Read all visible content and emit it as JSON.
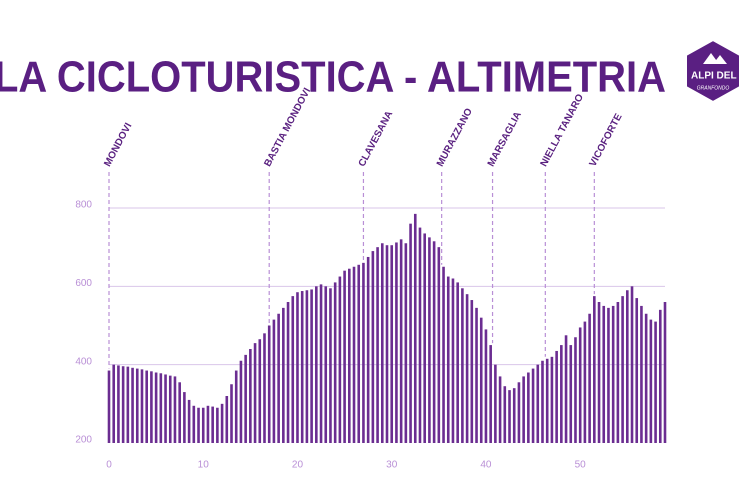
{
  "chart_data": {
    "type": "bar",
    "title": "LA CICLOTURISTICA - ALTIMETRIA",
    "x": [
      0,
      0.5,
      1,
      1.5,
      2,
      2.5,
      3,
      3.5,
      4,
      4.5,
      5,
      5.5,
      6,
      6.5,
      7,
      7.5,
      8,
      8.5,
      9,
      9.5,
      10,
      10.5,
      11,
      11.5,
      12,
      12.5,
      13,
      13.5,
      14,
      14.5,
      15,
      15.5,
      16,
      16.5,
      17,
      17.5,
      18,
      18.5,
      19,
      19.5,
      20,
      20.5,
      21,
      21.5,
      22,
      22.5,
      23,
      23.5,
      24,
      24.5,
      25,
      25.5,
      26,
      26.5,
      27,
      27.5,
      28,
      28.5,
      29,
      29.5,
      30,
      30.5,
      31,
      31.5,
      32,
      32.5,
      33,
      33.5,
      34,
      34.5,
      35,
      35.5,
      36,
      36.5,
      37,
      37.5,
      38,
      38.5,
      39,
      39.5,
      40,
      40.5,
      41,
      41.5,
      42,
      42.5,
      43,
      43.5,
      44,
      44.5,
      45,
      45.5,
      46,
      46.5,
      47,
      47.5,
      48,
      48.5,
      49,
      49.5,
      50,
      50.5,
      51,
      51.5,
      52,
      52.5,
      53,
      53.5,
      54,
      54.5,
      55,
      55.5,
      56,
      56.5,
      57,
      57.5,
      58,
      58.5,
      59
    ],
    "values": [
      385,
      400,
      398,
      396,
      395,
      392,
      390,
      388,
      385,
      383,
      380,
      378,
      375,
      372,
      370,
      355,
      330,
      310,
      295,
      290,
      290,
      295,
      293,
      290,
      300,
      320,
      350,
      385,
      410,
      425,
      440,
      455,
      465,
      480,
      500,
      515,
      530,
      545,
      560,
      575,
      585,
      588,
      590,
      592,
      600,
      605,
      600,
      595,
      610,
      625,
      640,
      645,
      650,
      655,
      660,
      675,
      690,
      700,
      710,
      705,
      705,
      712,
      720,
      710,
      760,
      785,
      750,
      735,
      725,
      715,
      700,
      650,
      625,
      620,
      610,
      595,
      580,
      565,
      545,
      520,
      490,
      450,
      400,
      370,
      345,
      335,
      340,
      355,
      370,
      380,
      390,
      400,
      410,
      415,
      420,
      435,
      450,
      475,
      450,
      470,
      495,
      510,
      530,
      575,
      560,
      550,
      545,
      550,
      560,
      575,
      590,
      600,
      570,
      550,
      530,
      515,
      510,
      540,
      560
    ],
    "color": "#6b2d91",
    "xlim": [
      0,
      59
    ],
    "xticks": [
      0,
      10,
      20,
      30,
      40,
      50
    ],
    "ylim": [
      200,
      800
    ],
    "yticks": [
      200,
      400,
      600,
      800
    ],
    "grid": true,
    "annotations": [
      {
        "text": "MONDOVI",
        "x": 0
      },
      {
        "text": "BASTIA MONDOVI",
        "x": 17
      },
      {
        "text": "CLAVESANA",
        "x": 27
      },
      {
        "text": "MURAZZANO",
        "x": 35.3
      },
      {
        "text": "MARSAGLIA",
        "x": 40.7
      },
      {
        "text": "NIELLA TANARO",
        "x": 46.3
      },
      {
        "text": "VICOFORTE",
        "x": 51.5
      }
    ]
  },
  "logo": {
    "title": "ALPI DEL MARE",
    "subtitle": "GRANFONDO"
  }
}
